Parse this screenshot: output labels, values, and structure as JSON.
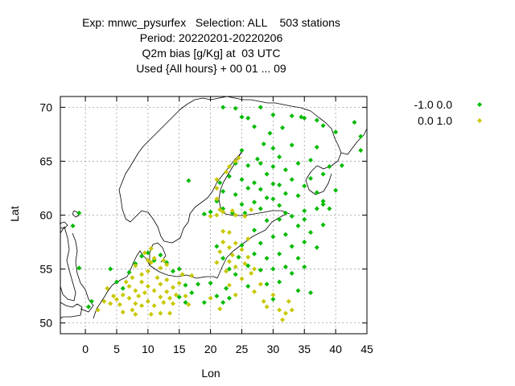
{
  "title_lines": [
    "Exp: mnwc_pysurfex   Selection: ALL    503 stations",
    "Period: 20220201-20220206",
    "Q2m bias [g/Kg] at  03 UTC",
    "Used {All hours} + 00 01 ... 09"
  ],
  "chart_data": {
    "type": "scatter",
    "xlabel": "Lon",
    "ylabel": "Lat",
    "xlim": [
      -4,
      45
    ],
    "ylim": [
      49,
      71
    ],
    "x_ticks": [
      0,
      5,
      10,
      15,
      20,
      25,
      30,
      35,
      40,
      45
    ],
    "y_ticks": [
      50,
      55,
      60,
      65,
      70
    ],
    "grid": true,
    "legend_position": "outside-right-top",
    "series": [
      {
        "name": "-1.0 0.0",
        "color": "#00bb00",
        "marker": "diamond",
        "points": [
          [
            -2,
            59
          ],
          [
            -1,
            60.2
          ],
          [
            -1,
            55.1
          ],
          [
            0.5,
            51.5
          ],
          [
            1,
            52
          ],
          [
            4,
            55
          ],
          [
            5,
            53.8
          ],
          [
            6,
            53.2
          ],
          [
            7,
            54.7
          ],
          [
            8,
            55.5
          ],
          [
            9,
            56.2
          ],
          [
            10,
            56.5
          ],
          [
            11,
            55.8
          ],
          [
            12,
            56.3
          ],
          [
            13,
            55.6
          ],
          [
            14,
            54.8
          ],
          [
            15,
            55.0
          ],
          [
            16,
            53.5
          ],
          [
            17,
            52.8
          ],
          [
            18,
            53.6
          ],
          [
            19,
            51.9
          ],
          [
            20,
            53.7
          ],
          [
            21,
            52.5
          ],
          [
            22,
            51.9
          ],
          [
            22.5,
            53.2
          ],
          [
            23,
            52.3
          ],
          [
            15,
            52.4
          ],
          [
            16,
            51.9
          ],
          [
            16.5,
            63.2
          ],
          [
            19,
            60.1
          ],
          [
            20,
            60.3
          ],
          [
            21,
            61.3
          ],
          [
            21.5,
            63
          ],
          [
            22,
            62.2
          ],
          [
            22,
            60.6
          ],
          [
            23,
            63.6
          ],
          [
            23.5,
            60.2
          ],
          [
            24,
            61.9
          ],
          [
            24,
            64.8
          ],
          [
            25,
            63.3
          ],
          [
            25,
            66.0
          ],
          [
            25.5,
            60.2
          ],
          [
            25,
            61.0
          ],
          [
            26,
            62.5
          ],
          [
            26,
            64.6
          ],
          [
            27,
            61.2
          ],
          [
            27,
            63.0
          ],
          [
            27.5,
            65.2
          ],
          [
            28,
            60.6
          ],
          [
            28,
            62.4
          ],
          [
            28,
            64.8
          ],
          [
            28.5,
            66.6
          ],
          [
            29,
            61.6
          ],
          [
            29,
            63.8
          ],
          [
            29.5,
            67.6
          ],
          [
            30,
            61.5
          ],
          [
            30,
            62.9
          ],
          [
            30,
            64.5
          ],
          [
            30,
            66.2
          ],
          [
            31,
            60.9
          ],
          [
            31,
            62.8
          ],
          [
            31,
            65.4
          ],
          [
            31.5,
            68.1
          ],
          [
            32,
            60.2
          ],
          [
            32,
            62.0
          ],
          [
            32,
            64.2
          ],
          [
            33,
            63.3
          ],
          [
            33,
            66.5
          ],
          [
            34,
            61.8
          ],
          [
            34,
            64.8
          ],
          [
            34.5,
            69.1
          ],
          [
            35,
            60.4
          ],
          [
            35,
            62.7
          ],
          [
            36,
            63.4
          ],
          [
            36,
            65.1
          ],
          [
            37,
            62.1
          ],
          [
            37,
            66.3
          ],
          [
            38,
            61.3
          ],
          [
            38,
            63.8
          ],
          [
            39,
            64.5
          ],
          [
            40,
            62.3
          ],
          [
            41,
            64.6
          ],
          [
            43,
            68.6
          ],
          [
            44,
            67.3
          ],
          [
            44,
            66.0
          ],
          [
            22,
            70.0
          ],
          [
            24,
            69.9
          ],
          [
            25,
            69.1
          ],
          [
            26,
            69.0
          ],
          [
            27,
            68.2
          ],
          [
            28,
            70.0
          ],
          [
            30,
            69.3
          ],
          [
            33,
            69.2
          ],
          [
            35,
            69.0
          ],
          [
            37,
            68.8
          ],
          [
            38,
            68.3
          ],
          [
            40,
            67.7
          ],
          [
            21,
            57.1
          ],
          [
            22,
            56.0
          ],
          [
            23,
            55.0
          ],
          [
            24,
            54.5
          ],
          [
            24.5,
            56.1
          ],
          [
            25,
            57.2
          ],
          [
            26,
            55.3
          ],
          [
            26,
            53.4
          ],
          [
            27,
            56.4
          ],
          [
            27,
            58.6
          ],
          [
            28,
            54.9
          ],
          [
            28,
            57.4
          ],
          [
            29,
            56.0
          ],
          [
            29,
            53.6
          ],
          [
            30,
            58.0
          ],
          [
            30,
            55.0
          ],
          [
            31,
            56.4
          ],
          [
            31,
            53.8
          ],
          [
            32,
            58.2
          ],
          [
            32,
            55.2
          ],
          [
            33,
            57.1
          ],
          [
            33,
            54.6
          ],
          [
            34,
            59.0
          ],
          [
            34,
            56.0
          ],
          [
            35,
            57.5
          ],
          [
            35,
            55.2
          ],
          [
            36,
            58.4
          ],
          [
            37,
            57.0
          ],
          [
            38,
            59.1
          ],
          [
            39,
            60.6
          ],
          [
            36,
            52.8
          ],
          [
            34,
            53.0
          ],
          [
            29,
            59.5
          ],
          [
            31,
            59.6
          ],
          [
            35,
            59.6
          ],
          [
            37,
            60.6
          ],
          [
            38,
            61.0
          ],
          [
            33,
            59.9
          ],
          [
            30,
            52.2
          ]
        ]
      },
      {
        "name": "0.0 1.0",
        "color": "#c8c800",
        "marker": "diamond",
        "points": [
          [
            2,
            51.2
          ],
          [
            3,
            52.0
          ],
          [
            3.5,
            53.2
          ],
          [
            4,
            51.8
          ],
          [
            4.5,
            52.5
          ],
          [
            5,
            52.2
          ],
          [
            5.5,
            51.7
          ],
          [
            6,
            52.6
          ],
          [
            6.5,
            53.8
          ],
          [
            7,
            52.3
          ],
          [
            7,
            53.4
          ],
          [
            7.5,
            54.2
          ],
          [
            8,
            51.8
          ],
          [
            8,
            53.0
          ],
          [
            8,
            55.3
          ],
          [
            8.5,
            52.5
          ],
          [
            9,
            53.8
          ],
          [
            9,
            51.6
          ],
          [
            9,
            54.5
          ],
          [
            9.5,
            52.8
          ],
          [
            10,
            53.4
          ],
          [
            10,
            52.0
          ],
          [
            10,
            54.8
          ],
          [
            10.5,
            55.6
          ],
          [
            11,
            53.0
          ],
          [
            11,
            51.6
          ],
          [
            11.5,
            54.2
          ],
          [
            12,
            52.4
          ],
          [
            12,
            53.6
          ],
          [
            12,
            55.1
          ],
          [
            12.5,
            51.9
          ],
          [
            13,
            52.9
          ],
          [
            13,
            54.0
          ],
          [
            13.5,
            52.3
          ],
          [
            14,
            53.3
          ],
          [
            14,
            51.8
          ],
          [
            14.5,
            52.6
          ],
          [
            15,
            53.7
          ],
          [
            15.5,
            54.5
          ],
          [
            16,
            52.5
          ],
          [
            11,
            56.0
          ],
          [
            10,
            55.8
          ],
          [
            12.5,
            55.8
          ],
          [
            9.5,
            56.5
          ],
          [
            10.5,
            56.9
          ],
          [
            7.5,
            51.2
          ],
          [
            10.5,
            50.8
          ],
          [
            12,
            50.9
          ],
          [
            13.5,
            50.9
          ],
          [
            8,
            50.8
          ],
          [
            6,
            51.0
          ],
          [
            16.5,
            51.7
          ],
          [
            17,
            54.4
          ],
          [
            13,
            55.4
          ],
          [
            20,
            59.9
          ],
          [
            21,
            60.0
          ],
          [
            21,
            61.5
          ],
          [
            21,
            62.5
          ],
          [
            21.5,
            60.5
          ],
          [
            22,
            60.3
          ],
          [
            21,
            63.3
          ],
          [
            22.5,
            64.0
          ],
          [
            23,
            64.5
          ],
          [
            24,
            65.0
          ],
          [
            24.5,
            65.3
          ],
          [
            23.5,
            60.4
          ],
          [
            24,
            60.0
          ],
          [
            25.5,
            59.9
          ],
          [
            26.5,
            60.5
          ],
          [
            21,
            55.6
          ],
          [
            21.5,
            56.6
          ],
          [
            22,
            57.5
          ],
          [
            22.5,
            54.8
          ],
          [
            23,
            55.7
          ],
          [
            23,
            57.0
          ],
          [
            23.5,
            56.3
          ],
          [
            24,
            57.4
          ],
          [
            24,
            55.2
          ],
          [
            25,
            56.8
          ],
          [
            25,
            54.1
          ],
          [
            25.5,
            55.5
          ],
          [
            26,
            57.8
          ],
          [
            26,
            56.1
          ],
          [
            26.5,
            54.6
          ],
          [
            27,
            55.0
          ],
          [
            27,
            52.9
          ],
          [
            28,
            53.6
          ],
          [
            28.5,
            52.0
          ],
          [
            29,
            51.5
          ],
          [
            30,
            52.6
          ],
          [
            31,
            51.2
          ],
          [
            31.5,
            50.3
          ],
          [
            32,
            50.9
          ],
          [
            32.5,
            52.0
          ],
          [
            33,
            51.2
          ],
          [
            20,
            52.3
          ],
          [
            21.5,
            51.3
          ],
          [
            23,
            53.5
          ],
          [
            24,
            52.6
          ],
          [
            22,
            58.5
          ],
          [
            23,
            58.4
          ]
        ]
      }
    ]
  }
}
